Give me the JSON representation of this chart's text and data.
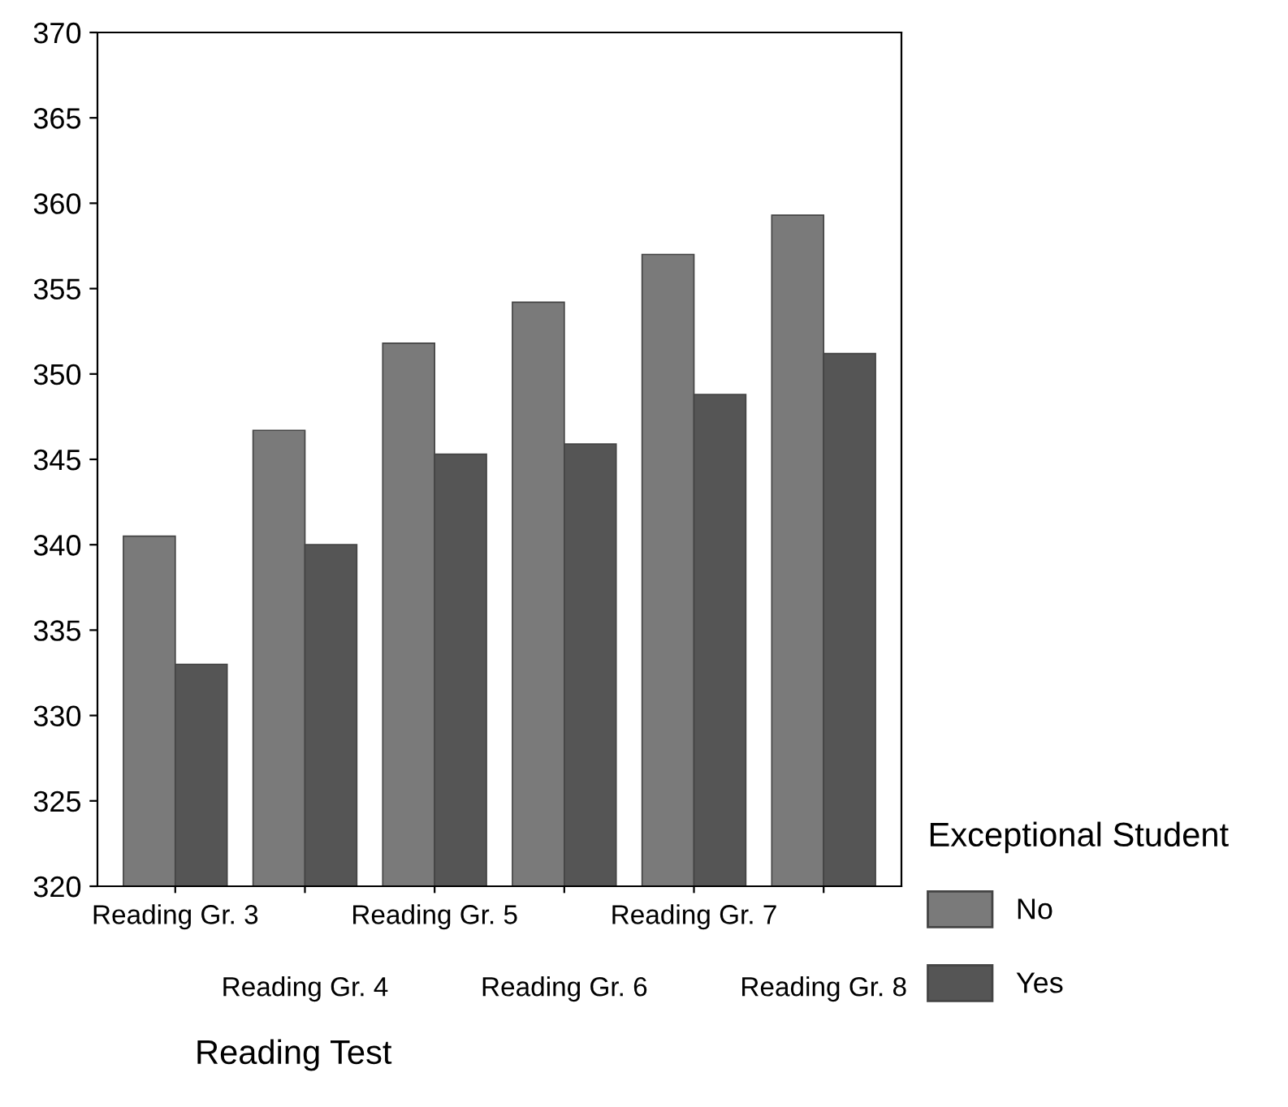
{
  "chart_data": {
    "type": "bar",
    "categories": [
      "Reading Gr. 3",
      "Reading Gr. 4",
      "Reading Gr. 5",
      "Reading Gr. 6",
      "Reading Gr. 7",
      "Reading Gr. 8"
    ],
    "series": [
      {
        "name": "No",
        "color": "#7a7a7a",
        "values": [
          340.5,
          346.7,
          351.8,
          354.2,
          357.0,
          359.3
        ]
      },
      {
        "name": "Yes",
        "color": "#555555",
        "values": [
          333.0,
          340.0,
          345.3,
          345.9,
          348.8,
          351.2
        ]
      }
    ],
    "xlabel": "Reading Test",
    "legend_title": "Exceptional Student",
    "legend": "right",
    "ylim": [
      320,
      370
    ],
    "yticks": [
      320,
      325,
      330,
      335,
      340,
      345,
      350,
      355,
      360,
      365,
      370
    ],
    "grid": false
  }
}
